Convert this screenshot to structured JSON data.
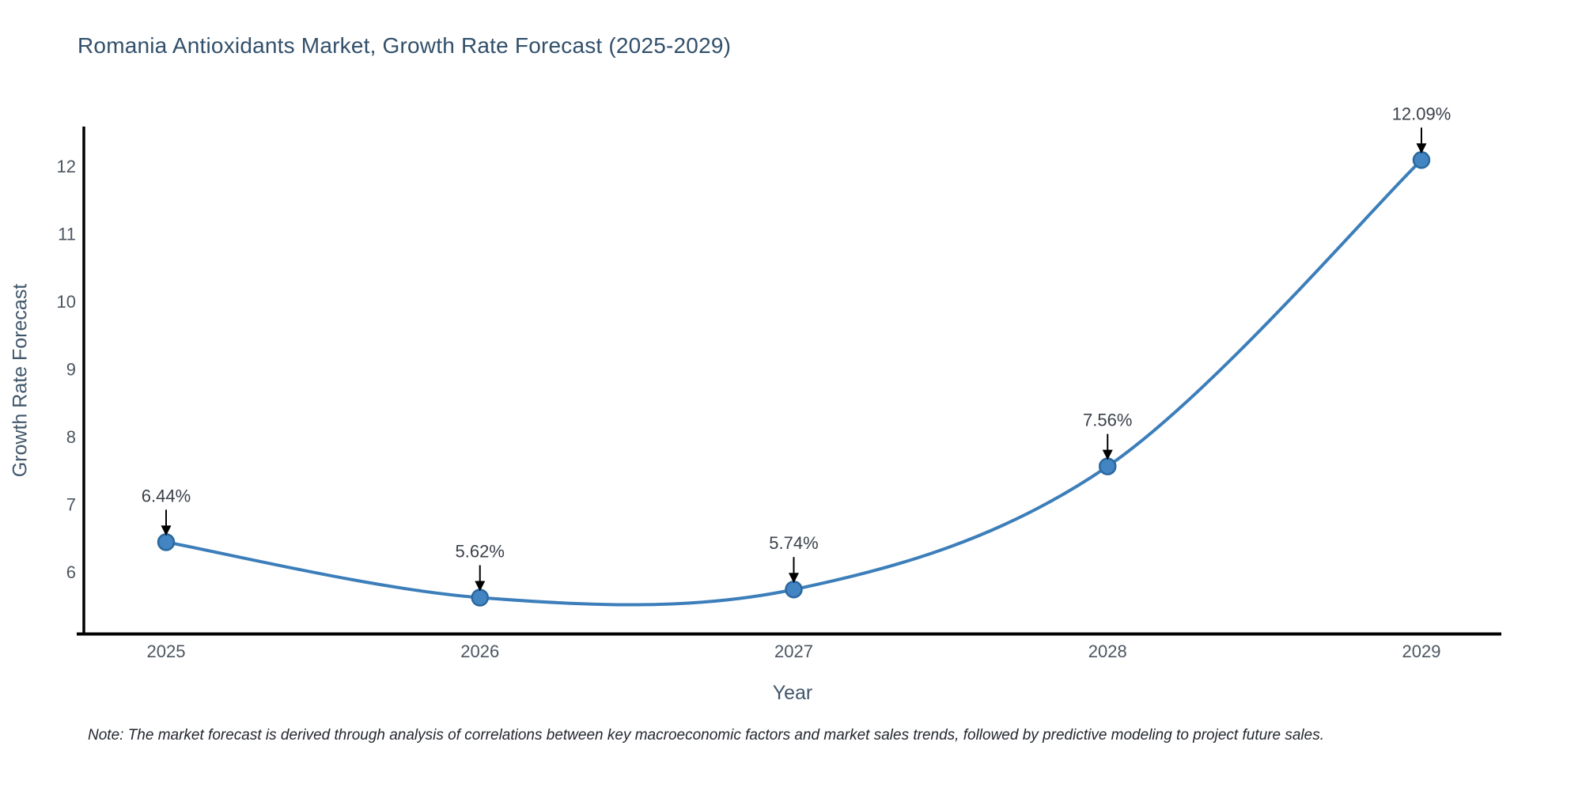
{
  "header": {
    "title": "Romania Antioxidants Market, Growth Rate Forecast (2025-2029)"
  },
  "footnote": {
    "text": "Note: The market forecast is derived through analysis of correlations between key macroeconomic factors and market sales trends, followed by predictive modeling to project future sales."
  },
  "chart_data": {
    "type": "line",
    "title": "Romania Antioxidants Market, Growth Rate Forecast (2025-2029)",
    "xlabel": "Year",
    "ylabel": "Growth Rate Forecast",
    "x": [
      2025,
      2026,
      2027,
      2028,
      2029
    ],
    "y": [
      6.44,
      5.62,
      5.74,
      7.56,
      12.09
    ],
    "point_labels": [
      "6.44%",
      "5.62%",
      "5.74%",
      "7.56%",
      "12.09%"
    ],
    "x_ticks": [
      "2025",
      "2026",
      "2027",
      "2028",
      "2029"
    ],
    "y_ticks": [
      6,
      7,
      8,
      9,
      10,
      11,
      12
    ],
    "ylim": [
      5.08,
      12.58
    ],
    "line_shape": "spline",
    "grid": false,
    "legend": "none",
    "colors": {
      "line": "#3c7eba",
      "marker_fill": "#4285c2",
      "marker_edge": "#2b689f",
      "axis": "#000000",
      "arrow": "#000000",
      "tick_label": "#4c5560",
      "annotation_text": "#3b414b",
      "title": "#32506b",
      "axis_title": "#42576b",
      "note": "#23272e"
    }
  }
}
